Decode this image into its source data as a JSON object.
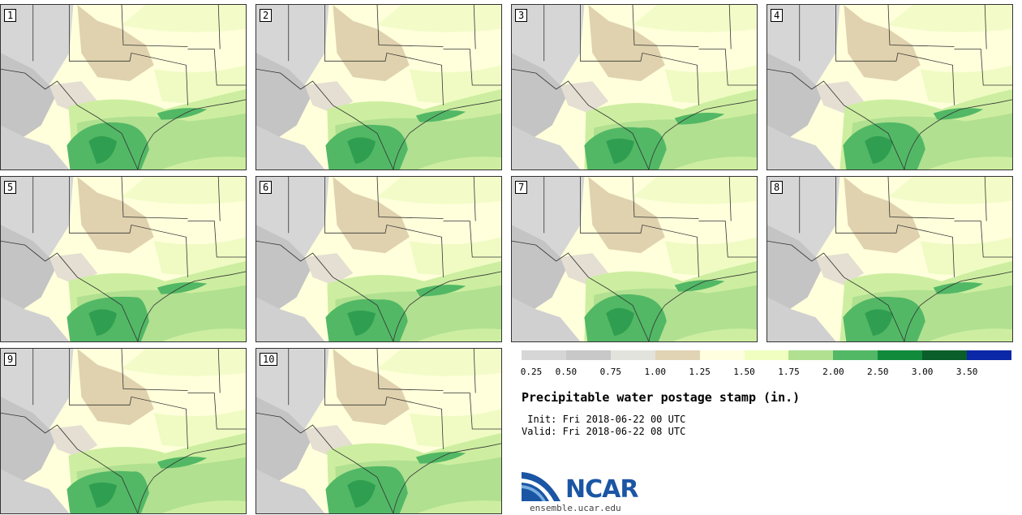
{
  "panels": [
    {
      "label": "1",
      "variant": 0
    },
    {
      "label": "2",
      "variant": 1
    },
    {
      "label": "3",
      "variant": 2
    },
    {
      "label": "4",
      "variant": 3
    },
    {
      "label": "5",
      "variant": 4
    },
    {
      "label": "6",
      "variant": 5
    },
    {
      "label": "7",
      "variant": 6
    },
    {
      "label": "8",
      "variant": 7
    },
    {
      "label": "9",
      "variant": 8
    },
    {
      "label": "10",
      "variant": 9
    }
  ],
  "legend": {
    "colors": [
      "#d6d6d6",
      "#c8c8c8",
      "#e3e3dd",
      "#e0d4b4",
      "#ffffe0",
      "#f0ffc0",
      "#b0e090",
      "#52b865",
      "#128a3c",
      "#0a5e2a",
      "#0a28a8"
    ],
    "ticks": [
      "0.25",
      "0.50",
      "0.75",
      "1.00",
      "1.25",
      "1.50",
      "1.75",
      "2.00",
      "2.50",
      "3.00",
      "3.50"
    ]
  },
  "title": "Precipitable water postage stamp (in.)",
  "init": " Init: Fri 2018-06-22 00 UTC",
  "valid": "Valid: Fri 2018-06-22 08 UTC",
  "logo": {
    "text": "NCAR",
    "url": "ensemble.ucar.edu"
  }
}
